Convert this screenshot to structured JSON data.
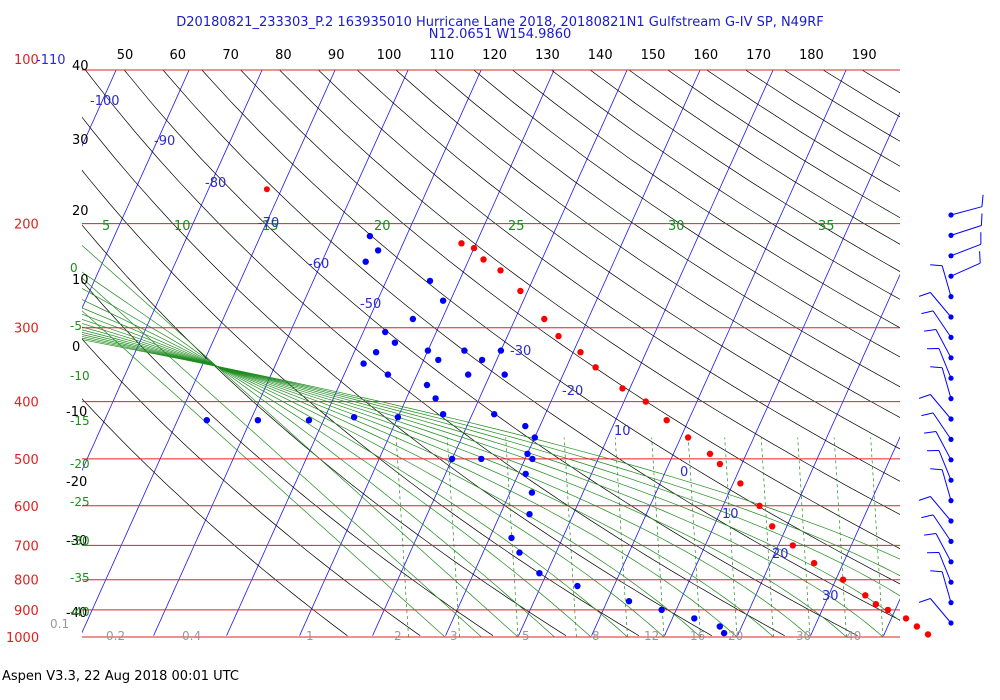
{
  "header": {
    "line1": "D20180821_233303_P.2 163935010 Hurricane Lane 2018, 20180821N1 Gulfstream G-IV SP, N49RF",
    "line2": "N12.0651 W154.9860"
  },
  "footer": "Aspen V3.3, 22 Aug 2018  00:01 UTC",
  "colors": {
    "isobar": "#e02020",
    "isotherm": "#1a1aff",
    "dry_adiabat": "#000000",
    "moist_adiabat": "#1e8c1e",
    "mixing_ratio": "#1e8c1e",
    "temperature": "#ff0000",
    "dewpoint": "#0000ff",
    "label_blue": "#2a2ad0",
    "label_red": "#e02020"
  },
  "chart_data": {
    "type": "scatter",
    "diagram": "skew-T log-P",
    "title": "D20180821_233303_P.2 163935010 Hurricane Lane 2018, 20180821N1 Gulfstream G-IV SP, N49RF",
    "subtitle": "N12.0651 W154.9860",
    "pressure_axis": {
      "unit": "hPa",
      "scale": "log",
      "range": [
        110,
        1000
      ],
      "ticks": [
        {
          "v": 100,
          "label": "100"
        },
        {
          "v": 110,
          "label": "-110"
        },
        {
          "v": 200,
          "label": "200"
        },
        {
          "v": 300,
          "label": "300"
        },
        {
          "v": 400,
          "label": "400"
        },
        {
          "v": 500,
          "label": "500"
        },
        {
          "v": 600,
          "label": "600"
        },
        {
          "v": 700,
          "label": "700"
        },
        {
          "v": 800,
          "label": "800"
        },
        {
          "v": 900,
          "label": "900"
        },
        {
          "v": 1000,
          "label": "1000"
        }
      ]
    },
    "theta_axis": {
      "position": "top",
      "ticks": [
        "50",
        "60",
        "70",
        "80",
        "90",
        "100",
        "110",
        "120",
        "130",
        "140",
        "150",
        "160",
        "170",
        "180",
        "190"
      ]
    },
    "left_temperature_labels": [
      "40",
      "30",
      "20",
      "10",
      "0",
      "-10",
      "-20",
      "-30",
      "-40"
    ],
    "isotherm_labels": [
      "-100",
      "-90",
      "-80",
      "-70",
      "-60",
      "-50",
      "-30",
      "-20",
      "10",
      "0",
      "10",
      "20",
      "30"
    ],
    "moist_adiabat_labels": [
      "5",
      "10",
      "15",
      "20",
      "25",
      "30",
      "35"
    ],
    "moist_left_labels": [
      "0",
      "-5",
      "-10",
      "-15",
      "-20",
      "-25",
      "-30",
      "-35",
      "-40"
    ],
    "mixing_ratio_labels": [
      "0.1",
      "0.2",
      "0.4",
      "1",
      "2",
      "3",
      "5",
      "8",
      "12",
      "16",
      "20",
      "30",
      "40"
    ],
    "series": [
      {
        "key": "temperature",
        "points": [
          [
            216,
            -62
          ],
          [
            220,
            -60
          ],
          [
            230,
            -58
          ],
          [
            240,
            -55
          ],
          [
            260,
            -51
          ],
          [
            290,
            -46
          ],
          [
            310,
            -43
          ],
          [
            330,
            -39
          ],
          [
            350,
            -36
          ],
          [
            380,
            -31
          ],
          [
            400,
            -27
          ],
          [
            430,
            -23
          ],
          [
            460,
            -19
          ],
          [
            490,
            -15
          ],
          [
            510,
            -13
          ],
          [
            550,
            -9
          ],
          [
            600,
            -5
          ],
          [
            650,
            -2
          ],
          [
            700,
            2
          ],
          [
            750,
            6
          ],
          [
            800,
            11
          ],
          [
            850,
            15
          ],
          [
            880,
            17
          ],
          [
            900,
            19
          ],
          [
            930,
            22
          ],
          [
            960,
            24
          ],
          [
            990,
            26
          ]
        ]
      },
      {
        "key": "dewpoint",
        "points": [
          [
            210,
            -75
          ],
          [
            222,
            -73
          ],
          [
            232,
            -74
          ],
          [
            250,
            -64
          ],
          [
            270,
            -61
          ],
          [
            290,
            -64
          ],
          [
            305,
            -67
          ],
          [
            318,
            -65
          ],
          [
            330,
            -67
          ],
          [
            345,
            -68
          ],
          [
            360,
            -64
          ],
          [
            375,
            -58
          ],
          [
            395,
            -56
          ],
          [
            420,
            -47
          ],
          [
            440,
            -42
          ],
          [
            460,
            -40
          ],
          [
            490,
            -40
          ],
          [
            500,
            -39
          ],
          [
            530,
            -39
          ],
          [
            570,
            -37
          ],
          [
            620,
            -36
          ],
          [
            680,
            -37
          ],
          [
            720,
            -35
          ],
          [
            780,
            -31
          ],
          [
            820,
            -25
          ],
          [
            870,
            -17
          ],
          [
            900,
            -12
          ],
          [
            930,
            -7
          ],
          [
            960,
            -3
          ],
          [
            985,
            -2
          ]
        ]
      },
      {
        "key": "dewpoint_spikes",
        "points": [
          [
            328,
            -50
          ],
          [
            328,
            -55
          ],
          [
            328,
            -60
          ],
          [
            340,
            -52
          ],
          [
            340,
            -58
          ],
          [
            360,
            -48
          ],
          [
            360,
            -53
          ],
          [
            420,
            -54
          ],
          [
            425,
            -60
          ],
          [
            425,
            -66
          ],
          [
            430,
            -72
          ],
          [
            430,
            -79
          ],
          [
            430,
            -86
          ],
          [
            500,
            -46
          ],
          [
            500,
            -50
          ]
        ]
      }
    ],
    "isolated_point": {
      "pressure": 175,
      "temperature": -92
    }
  }
}
